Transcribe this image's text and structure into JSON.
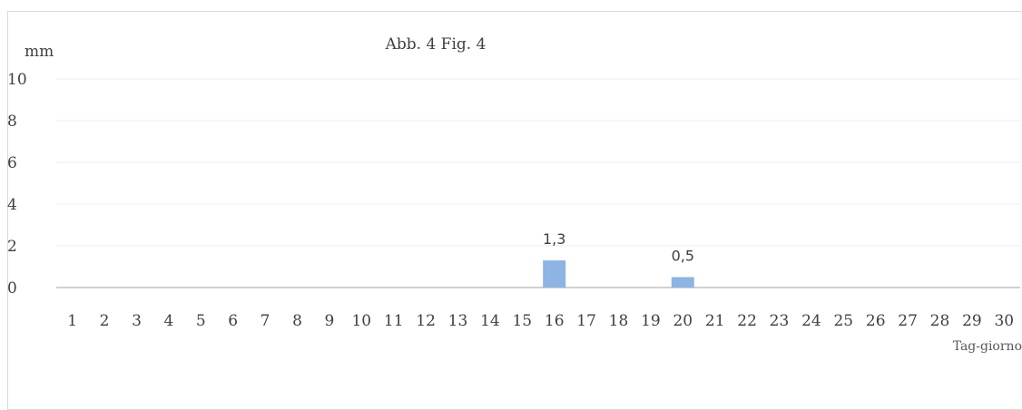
{
  "chart_data": {
    "type": "bar",
    "title": "Abb. 4   Fig. 4",
    "ylabel": "mm",
    "xlabel": "Tag-giorno",
    "ylim": [
      0,
      10
    ],
    "yticks": [
      0,
      2,
      4,
      6,
      8,
      10
    ],
    "categories": [
      "1",
      "2",
      "3",
      "4",
      "5",
      "6",
      "7",
      "8",
      "9",
      "10",
      "11",
      "12",
      "13",
      "14",
      "15",
      "16",
      "17",
      "18",
      "19",
      "20",
      "21",
      "22",
      "23",
      "24",
      "25",
      "26",
      "27",
      "28",
      "29",
      "30"
    ],
    "values": [
      0,
      0,
      0,
      0,
      0,
      0,
      0,
      0,
      0,
      0,
      0,
      0,
      0,
      0,
      0,
      1.3,
      0,
      0,
      0,
      0.5,
      0,
      0,
      0,
      0,
      0,
      0,
      0,
      0,
      0,
      0
    ],
    "data_labels": {
      "16": "1,3",
      "20": "0,5"
    },
    "grid": true,
    "bar_color": "#8db4e2",
    "legend": "none"
  }
}
